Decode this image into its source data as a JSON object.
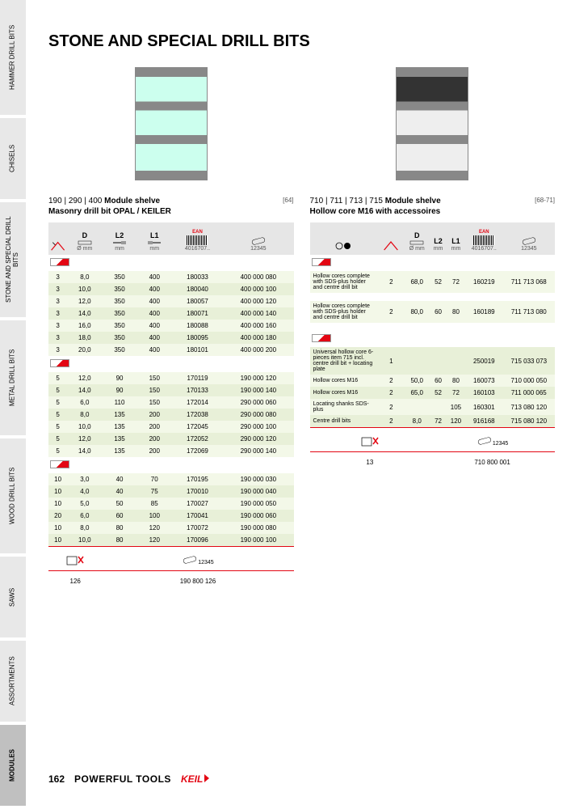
{
  "page_title": "STONE AND SPECIAL DRILL BITS",
  "sidebar_tabs": [
    {
      "label": "HAMMER DRILL BITS",
      "active": false
    },
    {
      "label": "CHISELS",
      "active": false
    },
    {
      "label": "STONE AND\nSPECIAL DRILL BITS",
      "active": false
    },
    {
      "label": "METAL DRILL BITS",
      "active": false
    },
    {
      "label": "WOOD DRILL BITS",
      "active": false
    },
    {
      "label": "SAWS",
      "active": false
    },
    {
      "label": "ASSORTMENTS",
      "active": false
    },
    {
      "label": "MODULES",
      "active": true
    }
  ],
  "left": {
    "title_codes": "190 | 290 | 400",
    "title_label": "Module shelve",
    "subtitle": "Masonry drill bit OPAL / KEILER",
    "page_ref": "[64]",
    "headers": {
      "d": "D",
      "d_sub": "Ø mm",
      "l2": "L2",
      "l2_sub": "mm",
      "l1": "L1",
      "l1_sub": "mm",
      "ean": "EAN",
      "art": "12345"
    },
    "group1": [
      [
        "3",
        "8,0",
        "350",
        "400",
        "180033",
        "400 000 080"
      ],
      [
        "3",
        "10,0",
        "350",
        "400",
        "180040",
        "400 000 100"
      ],
      [
        "3",
        "12,0",
        "350",
        "400",
        "180057",
        "400 000 120"
      ],
      [
        "3",
        "14,0",
        "350",
        "400",
        "180071",
        "400 000 140"
      ],
      [
        "3",
        "16,0",
        "350",
        "400",
        "180088",
        "400 000 160"
      ],
      [
        "3",
        "18,0",
        "350",
        "400",
        "180095",
        "400 000 180"
      ],
      [
        "3",
        "20,0",
        "350",
        "400",
        "180101",
        "400 000 200"
      ]
    ],
    "group2": [
      [
        "5",
        "12,0",
        "90",
        "150",
        "170119",
        "190 000 120"
      ],
      [
        "5",
        "14,0",
        "90",
        "150",
        "170133",
        "190 000 140"
      ],
      [
        "5",
        "6,0",
        "110",
        "150",
        "172014",
        "290 000 060"
      ],
      [
        "5",
        "8,0",
        "135",
        "200",
        "172038",
        "290 000 080"
      ],
      [
        "5",
        "10,0",
        "135",
        "200",
        "172045",
        "290 000 100"
      ],
      [
        "5",
        "12,0",
        "135",
        "200",
        "172052",
        "290 000 120"
      ],
      [
        "5",
        "14,0",
        "135",
        "200",
        "172069",
        "290 000 140"
      ]
    ],
    "group3": [
      [
        "10",
        "3,0",
        "40",
        "70",
        "170195",
        "190 000 030"
      ],
      [
        "10",
        "4,0",
        "40",
        "75",
        "170010",
        "190 000 040"
      ],
      [
        "10",
        "5,0",
        "50",
        "85",
        "170027",
        "190 000 050"
      ],
      [
        "20",
        "6,0",
        "60",
        "100",
        "170041",
        "190 000 060"
      ],
      [
        "10",
        "8,0",
        "80",
        "120",
        "170072",
        "190 000 080"
      ],
      [
        "10",
        "10,0",
        "80",
        "120",
        "170096",
        "190 000 100"
      ]
    ],
    "footer_qty": "126",
    "footer_code": "190 800 126"
  },
  "right": {
    "title_codes": "710 | 711 | 713 | 715",
    "title_label": "Module shelve",
    "subtitle": "Hollow core M16 with accessoires",
    "page_ref": "[68-71]",
    "headers": {
      "d": "D",
      "d_sub": "Ø mm",
      "l2": "L2",
      "l2_sub": "mm",
      "l1": "L1",
      "l1_sub": "mm",
      "ean": "EAN",
      "art": "12345"
    },
    "rows": [
      {
        "desc": "Hollow cores complete with SDS-plus holder and centre drill bit",
        "q": "2",
        "d": "68,0",
        "l2": "52",
        "l1": "72",
        "ean": "160219",
        "art": "711 713 068"
      },
      {
        "desc": "Hollow cores complete with SDS-plus holder and centre drill bit",
        "q": "2",
        "d": "80,0",
        "l2": "60",
        "l1": "80",
        "ean": "160189",
        "art": "711 713 080"
      }
    ],
    "rows2": [
      {
        "desc": "Universal hollow core 6-pieces item 715 incl. centre drill bit + locating plate",
        "q": "1",
        "d": "",
        "l2": "",
        "l1": "",
        "ean": "250019",
        "art": "715 033 073"
      },
      {
        "desc": "Hollow cores M16",
        "q": "2",
        "d": "50,0",
        "l2": "60",
        "l1": "80",
        "ean": "160073",
        "art": "710 000 050"
      },
      {
        "desc": "Hollow cores M16",
        "q": "2",
        "d": "65,0",
        "l2": "52",
        "l1": "72",
        "ean": "160103",
        "art": "711 000 065"
      },
      {
        "desc": "Locating shanks SDS-plus",
        "q": "2",
        "d": "",
        "l2": "",
        "l1": "105",
        "ean": "160301",
        "art": "713 080 120"
      },
      {
        "desc": "Centre drill bits",
        "q": "2",
        "d": "8,0",
        "l2": "72",
        "l1": "120",
        "ean": "916168",
        "art": "715 080 120"
      }
    ],
    "footer_qty": "13",
    "footer_code": "710 800 001"
  },
  "footer": {
    "page": "162",
    "brand": "POWERFUL TOOLS",
    "logo": "KEIL"
  }
}
